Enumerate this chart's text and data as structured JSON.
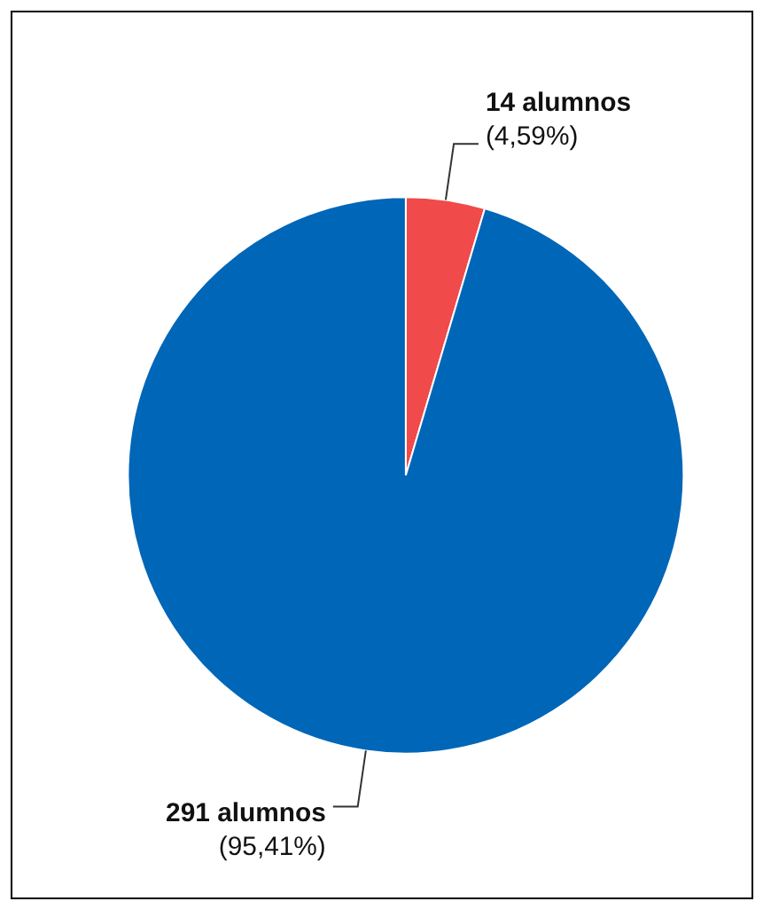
{
  "chart_data": {
    "type": "pie",
    "categories": [
      null,
      null
    ],
    "values": [
      14,
      291
    ],
    "colors": [
      "#f04a4a",
      "#0066b8"
    ],
    "value_labels": [
      "14 alumnos\n(4,59%)",
      "291 alumnos\n(95,41%)"
    ],
    "legend": false
  }
}
